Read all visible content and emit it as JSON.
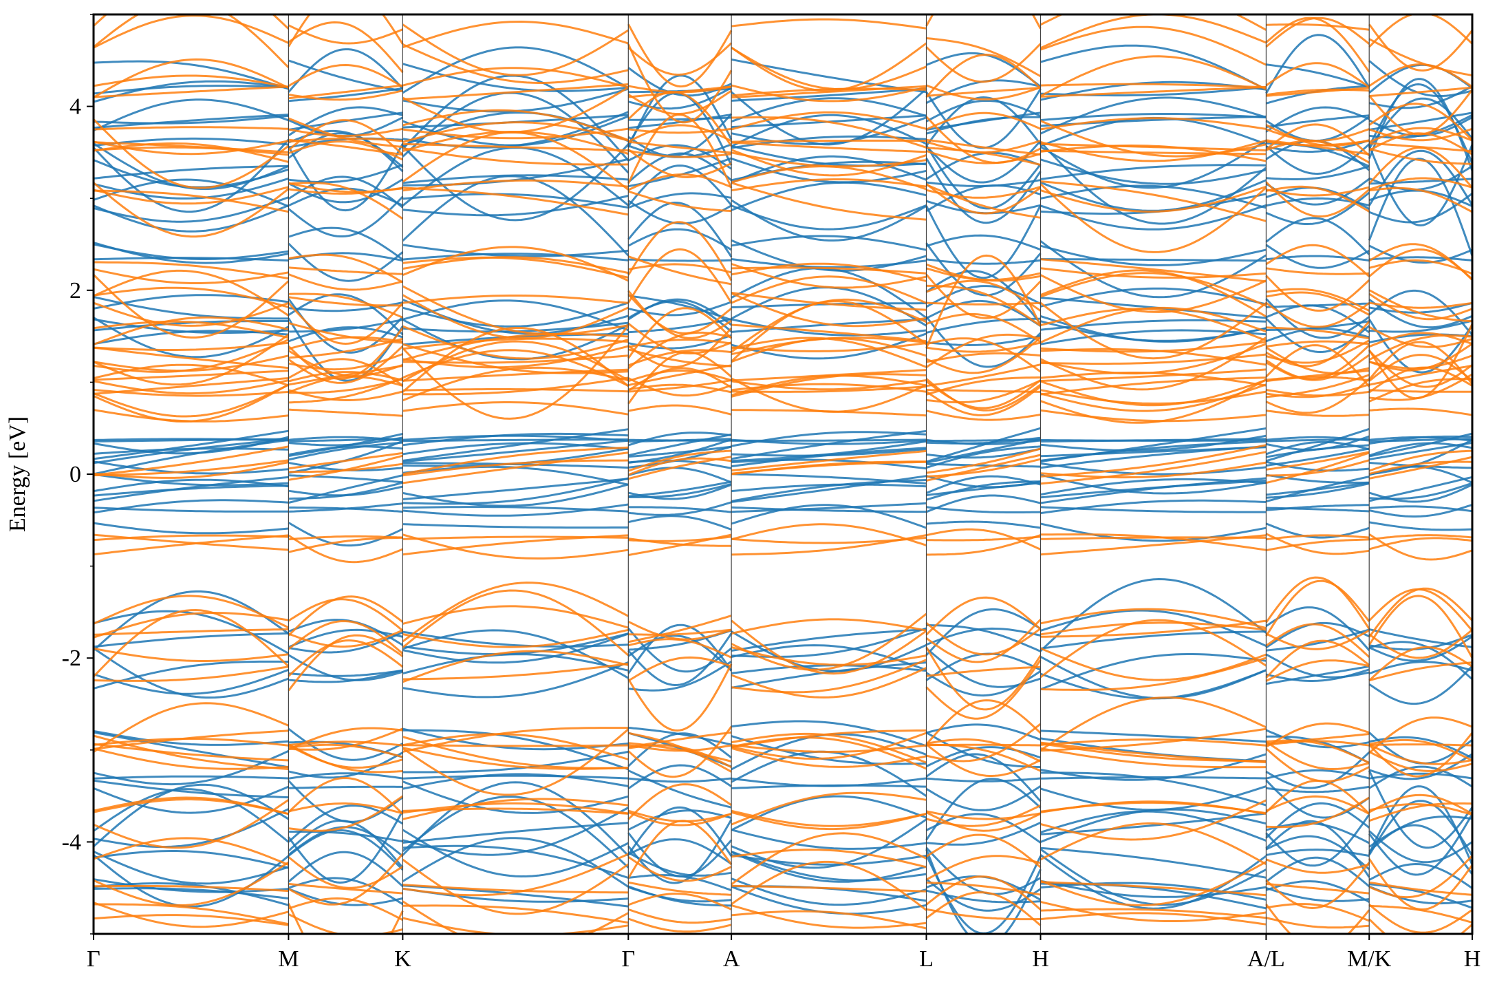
{
  "chart_data": {
    "type": "line",
    "ylabel": "Energy [eV]",
    "ylim": [
      -5,
      5
    ],
    "yticks": [
      -4,
      -2,
      0,
      2,
      4
    ],
    "yticks_minor": [
      -5,
      -3,
      -1,
      1,
      3,
      5
    ],
    "xlim": [
      0,
      4.95
    ],
    "high_symmetry_points": [
      {
        "label": "Γ",
        "x": 0.0
      },
      {
        "label": "M",
        "x": 0.7
      },
      {
        "label": "K",
        "x": 1.11
      },
      {
        "label": "Γ",
        "x": 1.92
      },
      {
        "label": "A",
        "x": 2.29
      },
      {
        "label": "L",
        "x": 2.99
      },
      {
        "label": "H",
        "x": 3.4
      },
      {
        "label": "A/L",
        "x": 4.21
      },
      {
        "label": "M/K",
        "x": 4.58
      },
      {
        "label": "H",
        "x": 4.95
      }
    ],
    "grid": false,
    "legend": "none",
    "series": [
      {
        "color": "#1f77b4",
        "band_energies_at_gamma": [
          -4.6,
          -4.2,
          -3.85,
          -3.3,
          -3.0,
          -2.2,
          -1.75,
          -0.42,
          -0.2,
          0.05,
          0.3,
          0.5,
          1.45,
          1.8,
          2.35,
          2.9,
          3.3,
          3.45,
          3.7,
          4.3
        ]
      },
      {
        "color": "#ff7f0e",
        "band_energies_at_gamma": [
          -4.75,
          -4.35,
          -3.75,
          -3.15,
          -2.9,
          -2.0,
          -1.8,
          -0.7,
          0.15,
          0.75,
          0.95,
          1.1,
          1.25,
          1.4,
          1.75,
          2.1,
          3.1,
          3.55,
          3.75,
          4.15,
          4.7
        ]
      }
    ]
  }
}
